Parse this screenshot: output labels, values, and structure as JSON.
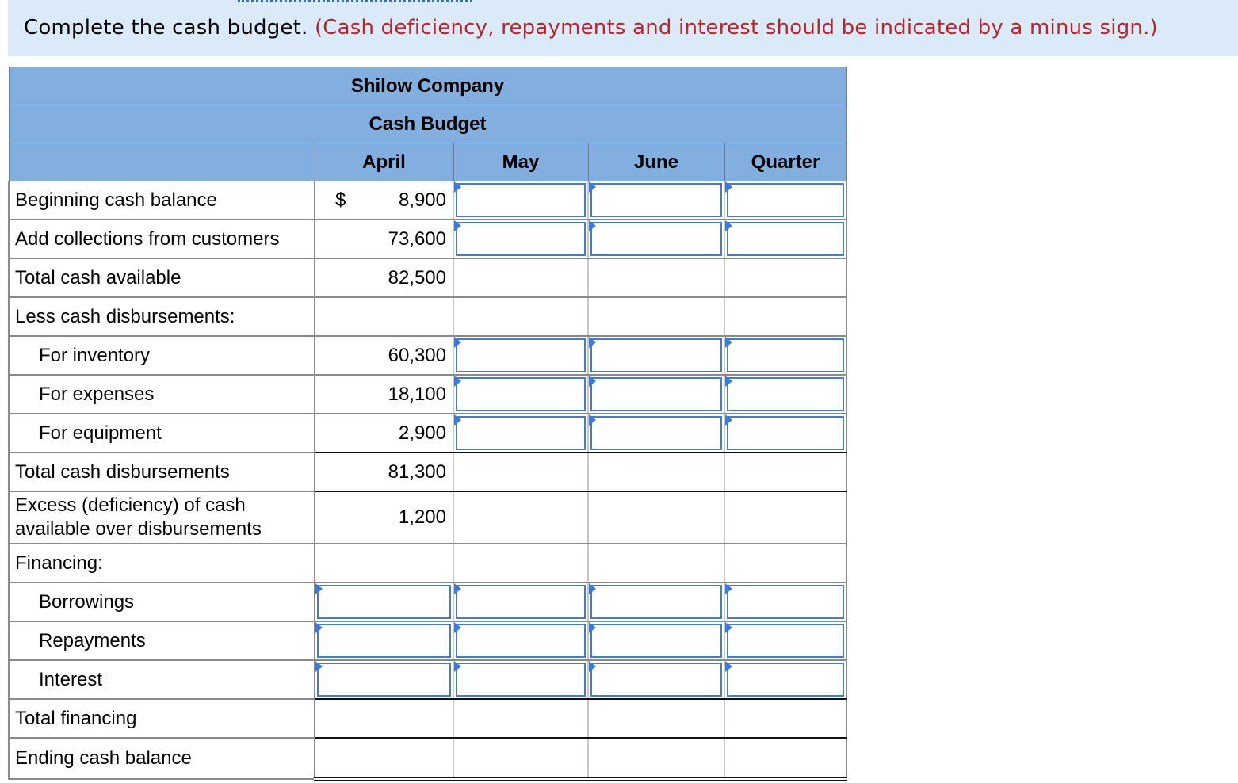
{
  "instruction": {
    "text": "Complete the cash budget.",
    "note": "(Cash deficiency, repayments and interest should be indicated by a minus sign.)"
  },
  "table": {
    "company": "Shilow Company",
    "title": "Cash Budget",
    "columns": [
      "April",
      "May",
      "June",
      "Quarter"
    ],
    "currency_symbol": "$",
    "rows": {
      "beginning_cash": {
        "label": "Beginning cash balance",
        "april": "8,900"
      },
      "collections": {
        "label": "Add collections from customers",
        "april": "73,600"
      },
      "total_available": {
        "label": "Total cash available",
        "april": "82,500"
      },
      "less_disb": {
        "label": "Less cash disbursements:"
      },
      "inventory": {
        "label": "For inventory",
        "april": "60,300"
      },
      "expenses": {
        "label": "For expenses",
        "april": "18,100"
      },
      "equipment": {
        "label": "For equipment",
        "april": "2,900"
      },
      "total_disb": {
        "label": "Total cash disbursements",
        "april": "81,300"
      },
      "excess": {
        "label": "Excess (deficiency) of cash available over disbursements",
        "april": "1,200"
      },
      "financing": {
        "label": "Financing:"
      },
      "borrowings": {
        "label": "Borrowings"
      },
      "repayments": {
        "label": "Repayments"
      },
      "interest": {
        "label": "Interest"
      },
      "total_financing": {
        "label": "Total financing"
      },
      "ending_cash": {
        "label": "Ending cash balance"
      }
    }
  }
}
